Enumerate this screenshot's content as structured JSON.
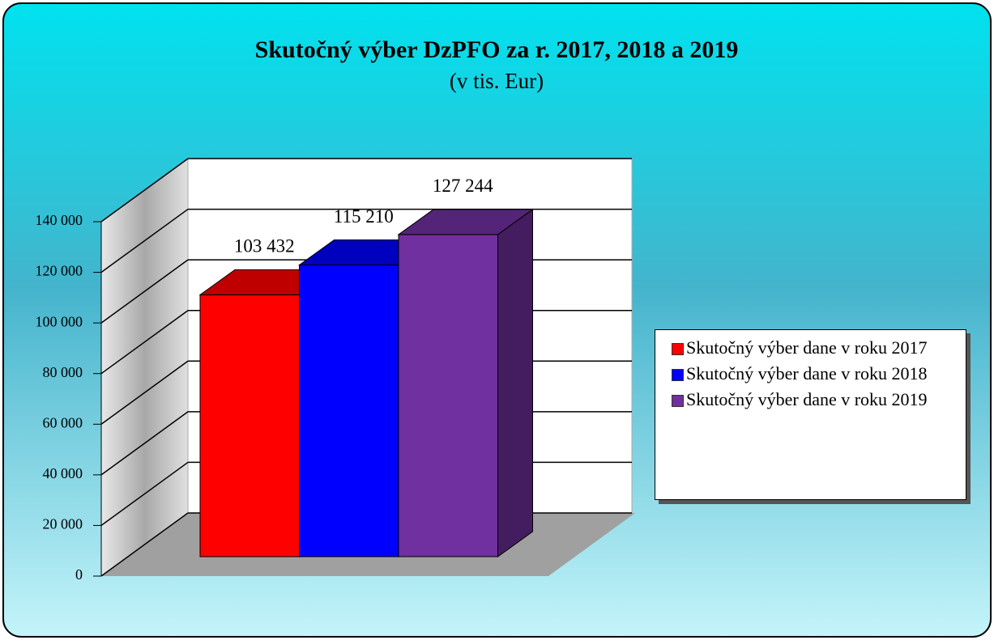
{
  "chart_data": {
    "type": "bar3d",
    "title": "Skutočný výber DzPFO za r. 2017, 2018 a 2019",
    "subtitle": "(v tis. Eur)",
    "categories": [
      null
    ],
    "series": [
      {
        "name": "Skutočný výber dane v roku 2017",
        "color": "#ff0000",
        "values": [
          103432
        ],
        "value_labels": [
          "103 432"
        ]
      },
      {
        "name": "Skutočný výber dane v roku 2018",
        "color": "#0000ff",
        "values": [
          115210
        ],
        "value_labels": [
          "115 210"
        ]
      },
      {
        "name": "Skutočný výber dane v roku 2019",
        "color": "#7030a0",
        "values": [
          127244
        ],
        "value_labels": [
          "127 244"
        ]
      }
    ],
    "ylim": [
      0,
      140000
    ],
    "yticks": [
      0,
      {
        "value": 20000,
        "label": "20 000"
      },
      {
        "value": 40000,
        "label": "40 000"
      },
      {
        "value": 60000,
        "label": "60 000"
      },
      {
        "value": 80000,
        "label": "80 000"
      },
      {
        "value": 100000,
        "label": "100 000"
      },
      {
        "value": 120000,
        "label": "120 000"
      },
      {
        "value": 140000,
        "label": "140 000"
      }
    ],
    "grid": true,
    "legend": "right"
  }
}
